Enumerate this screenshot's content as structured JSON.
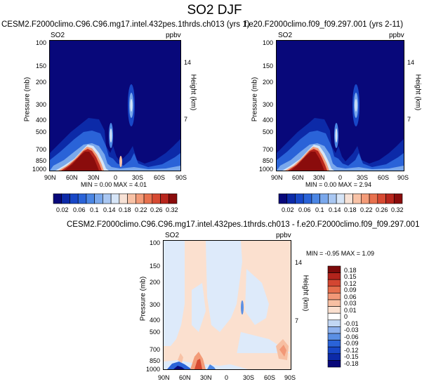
{
  "main_title": "SO2 DJF",
  "colors": {
    "seq": [
      "#08087a",
      "#0c2aa8",
      "#1847c7",
      "#2a63d8",
      "#4b86e4",
      "#7aa8ec",
      "#a9c7f2",
      "#d6e5f7",
      "#f7e2d6",
      "#f8c2a6",
      "#f39b78",
      "#e8714e",
      "#d74a32",
      "#b8261d",
      "#8a0c0c"
    ],
    "div": [
      "#08087a",
      "#0c2aa8",
      "#1847c7",
      "#2a63d8",
      "#5a8fe4",
      "#8db1ee",
      "#c2d7f4",
      "#ffffff",
      "#fbe0cf",
      "#f7bfa2",
      "#f29877",
      "#e56e4c",
      "#d34631",
      "#b2241c",
      "#7c0a0a"
    ]
  },
  "chart_data": [
    {
      "type": "heatmap",
      "title": "CESM2.F2000climo.C96.C96.mg17.intel.432pes.1thrds.ch013 (yrs 1)",
      "left_label": "SO2",
      "right_label": "ppbv",
      "ylabel": "Pressure (mb)",
      "ylabel_right": "Height (km)",
      "yticks": [
        "100",
        "150",
        "200",
        "300",
        "400",
        "500",
        "700",
        "850",
        "1000"
      ],
      "yticks_right": [
        "14",
        "7"
      ],
      "xticks": [
        "90N",
        "60N",
        "30N",
        "0",
        "30S",
        "60S",
        "90S"
      ],
      "min_max": "MIN =  0.00  MAX =  4.01",
      "colorbar_labels": [
        "0.02",
        "0.06",
        "0.1",
        "0.14",
        "0.18",
        "0.22",
        "0.26",
        "0.32"
      ]
    },
    {
      "type": "heatmap",
      "title": "f.e20.F2000climo.f09_f09.297.001 (yrs 2-11)",
      "left_label": "SO2",
      "right_label": "ppbv",
      "ylabel": "Pressure (mb)",
      "ylabel_right": "Height (km)",
      "yticks": [
        "100",
        "150",
        "200",
        "300",
        "400",
        "500",
        "700",
        "850",
        "1000"
      ],
      "yticks_right": [
        "14",
        "7"
      ],
      "xticks": [
        "90N",
        "60N",
        "30N",
        "0",
        "30S",
        "60S",
        "90S"
      ],
      "min_max": "MIN =  0.00  MAX =  2.94",
      "colorbar_labels": [
        "0.02",
        "0.06",
        "0.1",
        "0.14",
        "0.18",
        "0.22",
        "0.26",
        "0.32"
      ]
    },
    {
      "type": "heatmap",
      "title": "CESM2.F2000climo.C96.C96.mg17.intel.432pes.1thrds.ch013 - f.e20.F2000climo.f09_f09.297.001",
      "left_label": "SO2",
      "right_label": "ppbv",
      "ylabel": "Pressure (mb)",
      "ylabel_right": "Height (km)",
      "yticks": [
        "100",
        "150",
        "200",
        "300",
        "400",
        "500",
        "700",
        "850",
        "1000"
      ],
      "yticks_right": [
        "14",
        "7"
      ],
      "xticks": [
        "90N",
        "60N",
        "30N",
        "0",
        "30S",
        "60S",
        "90S"
      ],
      "min_max": "MIN = -0.95  MAX =  1.09",
      "colorbar_labels": [
        "0.18",
        "0.15",
        "0.12",
        "0.09",
        "0.06",
        "0.03",
        "0.01",
        "0",
        "-0.01",
        "-0.03",
        "-0.06",
        "-0.09",
        "-0.12",
        "-0.15",
        "-0.18"
      ]
    }
  ]
}
